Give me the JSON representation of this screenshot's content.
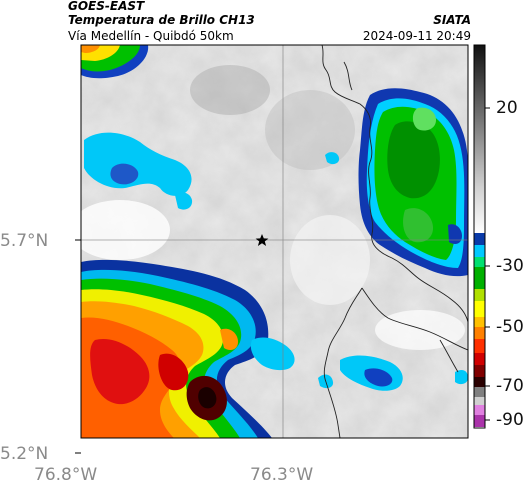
{
  "header": {
    "satellite": "GOES-EAST",
    "product": "Temperatura de Brillo CH13",
    "route": "Vía Medellín - Quibdó 50km",
    "agency": "SIATA",
    "datetime": "2024-09-11 20:49"
  },
  "map": {
    "lat_ticks": [
      "5.7°N",
      "5.2°N"
    ],
    "lon_ticks": [
      "76.8°W",
      "76.3°W"
    ],
    "marker": "star-icon",
    "gridlines": true
  },
  "colorbar": {
    "ticks": [
      "20",
      "-30",
      "-50",
      "-70",
      "-90"
    ],
    "range": [
      30,
      -95
    ],
    "colors": {
      "warm_gray_low": "#ffffff",
      "warm_gray_high": "#111111",
      "cyan": "#00c8ff",
      "blue": "#0a3aa8",
      "green": "#00cc00",
      "yellow": "#ffff00",
      "orange": "#ff8000",
      "red": "#dd0000",
      "dark": "#2a0000",
      "magenta": "#aa33aa"
    }
  }
}
